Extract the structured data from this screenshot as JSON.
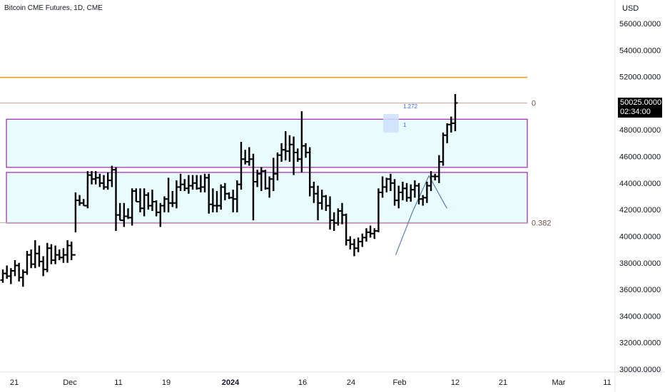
{
  "header": {
    "title": "Bitcoin CME Futures, 1D, CME"
  },
  "price_axis": {
    "currency": "USD",
    "last_price": "50025.0000",
    "countdown": "02:34:00"
  },
  "chart_data": {
    "type": "ohlc",
    "title": "Bitcoin CME Futures, 1D, CME",
    "y_ticks": [
      "56000.0000",
      "54000.0000",
      "52000.0000",
      "50000.0000",
      "48000.0000",
      "46000.0000",
      "44000.0000",
      "42000.0000",
      "40000.0000",
      "38000.0000",
      "36000.0000",
      "34000.0000",
      "32000.0000",
      "30000.0000"
    ],
    "ylim": [
      30000,
      56000
    ],
    "x_ticks": [
      {
        "label": "21",
        "bold": false
      },
      {
        "label": "Dec",
        "bold": false
      },
      {
        "label": "11",
        "bold": false
      },
      {
        "label": "19",
        "bold": false
      },
      {
        "label": "2024",
        "bold": true
      },
      {
        "label": "16",
        "bold": false
      },
      {
        "label": "24",
        "bold": false
      },
      {
        "label": "Feb",
        "bold": false
      },
      {
        "label": "12",
        "bold": false
      },
      {
        "label": "21",
        "bold": false
      },
      {
        "label": "Mar",
        "bold": false
      },
      {
        "label": "11",
        "bold": false
      }
    ],
    "fib_labels": [
      {
        "label": "0",
        "price": 50025
      },
      {
        "label": "0.382",
        "price": 41020
      }
    ],
    "extension_labels": [
      {
        "label": "1.272",
        "price": 49780
      },
      {
        "label": "1",
        "price": 48400
      }
    ],
    "horizontal_lines": [
      {
        "price": 51950,
        "color": "#e6a020",
        "role": "resistance"
      },
      {
        "price": 50025,
        "color": "#c8a89a",
        "role": "fib-0"
      }
    ],
    "zones": [
      {
        "top": 48800,
        "bottom": 45180,
        "color": "#9c27b0",
        "fill": "#e8fbfd"
      },
      {
        "top": 44800,
        "bottom": 41000,
        "color": "#9c27b0",
        "fill": "#e8fbfd"
      }
    ],
    "extension_line": [
      {
        "x": 0.595,
        "price": 38600
      },
      {
        "x": 0.62,
        "price": 41800
      },
      {
        "x": 0.645,
        "price": 44550
      },
      {
        "x": 0.672,
        "price": 42100
      }
    ],
    "bars": [
      [
        36700,
        37500,
        36500,
        37200
      ],
      [
        37200,
        37800,
        36800,
        37000
      ],
      [
        37000,
        37600,
        36400,
        37400
      ],
      [
        37400,
        38200,
        37000,
        37800
      ],
      [
        37800,
        38000,
        36600,
        36900
      ],
      [
        36900,
        37500,
        36200,
        37300
      ],
      [
        37300,
        38900,
        37100,
        38600
      ],
      [
        38600,
        39000,
        37600,
        37900
      ],
      [
        37900,
        39700,
        37600,
        38700
      ],
      [
        38700,
        39300,
        37700,
        38100
      ],
      [
        38100,
        38500,
        37000,
        37500
      ],
      [
        37500,
        39500,
        37300,
        39100
      ],
      [
        39100,
        39400,
        37900,
        38200
      ],
      [
        38200,
        39300,
        37900,
        38600
      ],
      [
        38600,
        39000,
        38200,
        38400
      ],
      [
        38400,
        39100,
        38000,
        38600
      ],
      [
        38600,
        39700,
        38000,
        39300
      ],
      [
        39300,
        39600,
        38200,
        38600
      ],
      [
        38600,
        43300,
        40300,
        42700
      ],
      [
        42700,
        43100,
        42300,
        42500
      ],
      [
        42500,
        42800,
        42300,
        42300
      ],
      [
        42300,
        44900,
        42100,
        44600
      ],
      [
        44600,
        44900,
        43900,
        44300
      ],
      [
        44300,
        44900,
        43900,
        44400
      ],
      [
        44400,
        44700,
        43700,
        44000
      ],
      [
        44000,
        44600,
        43500,
        43700
      ],
      [
        43700,
        44800,
        43500,
        44200
      ],
      [
        44200,
        45300,
        43700,
        45000
      ],
      [
        45000,
        45200,
        40400,
        41600
      ],
      [
        41600,
        42500,
        41200,
        41200
      ],
      [
        41200,
        42500,
        40700,
        41500
      ],
      [
        41500,
        42100,
        41300,
        41400
      ],
      [
        41400,
        43600,
        40800,
        43400
      ],
      [
        43400,
        43600,
        42600,
        42600
      ],
      [
        42600,
        43600,
        41800,
        42100
      ],
      [
        42100,
        43600,
        41500,
        43100
      ],
      [
        43100,
        43300,
        42000,
        42300
      ],
      [
        42300,
        43500,
        41900,
        42600
      ],
      [
        42600,
        42700,
        41500,
        41800
      ],
      [
        41800,
        42500,
        40700,
        42300
      ],
      [
        42300,
        43000,
        41800,
        42800
      ],
      [
        42800,
        44400,
        41800,
        42500
      ],
      [
        42500,
        43400,
        42200,
        42500
      ],
      [
        42500,
        44200,
        42100,
        43700
      ],
      [
        43700,
        44700,
        43400,
        43900
      ],
      [
        43900,
        44300,
        43400,
        43600
      ],
      [
        43600,
        44600,
        43200,
        43800
      ],
      [
        43800,
        44600,
        43500,
        44000
      ],
      [
        44000,
        44600,
        43500,
        43600
      ],
      [
        43600,
        44600,
        43300,
        43700
      ],
      [
        43700,
        44700,
        43300,
        44400
      ],
      [
        44400,
        44700,
        41700,
        42400
      ],
      [
        42400,
        43600,
        41800,
        42300
      ],
      [
        42300,
        43400,
        41800,
        42300
      ],
      [
        42300,
        43900,
        42000,
        43700
      ],
      [
        43700,
        44000,
        42700,
        43200
      ],
      [
        43200,
        43300,
        42800,
        42900
      ],
      [
        42900,
        43500,
        41800,
        42800
      ],
      [
        42800,
        44200,
        41800,
        43900
      ],
      [
        43900,
        47100,
        43500,
        45800
      ],
      [
        45800,
        46500,
        45400,
        45600
      ],
      [
        45600,
        46700,
        45300,
        45800
      ],
      [
        45800,
        46200,
        41200,
        44100
      ],
      [
        44100,
        45000,
        43700,
        44700
      ],
      [
        44700,
        45200,
        43400,
        44900
      ],
      [
        44900,
        45000,
        43500,
        43600
      ],
      [
        43600,
        44500,
        42900,
        44300
      ],
      [
        44300,
        45900,
        43400,
        44700
      ],
      [
        44700,
        46300,
        44200,
        46100
      ],
      [
        46100,
        47000,
        45600,
        46500
      ],
      [
        46500,
        47900,
        45700,
        46400
      ],
      [
        46400,
        47600,
        45600,
        46900
      ],
      [
        46900,
        47500,
        44600,
        46300
      ],
      [
        46300,
        46600,
        45600,
        45800
      ],
      [
        45800,
        49400,
        44800,
        46800
      ],
      [
        46800,
        47000,
        45900,
        46300
      ],
      [
        46300,
        46700,
        43000,
        43700
      ],
      [
        43700,
        44100,
        42500,
        43200
      ],
      [
        43200,
        43800,
        41200,
        42500
      ],
      [
        42500,
        43500,
        42000,
        43000
      ],
      [
        43000,
        43100,
        41900,
        42300
      ],
      [
        42300,
        43000,
        40500,
        41200
      ],
      [
        41200,
        41800,
        40400,
        41000
      ],
      [
        41000,
        42100,
        40800,
        41900
      ],
      [
        41900,
        42500,
        40900,
        41600
      ],
      [
        41600,
        41700,
        39300,
        39700
      ],
      [
        39700,
        40000,
        39000,
        39400
      ],
      [
        39400,
        39800,
        38500,
        39100
      ],
      [
        39100,
        39900,
        38800,
        39600
      ],
      [
        39600,
        40200,
        39200,
        39900
      ],
      [
        39900,
        40600,
        39600,
        40300
      ],
      [
        40300,
        40800,
        39900,
        40200
      ],
      [
        40200,
        40600,
        39800,
        40400
      ],
      [
        40400,
        43600,
        40300,
        43300
      ],
      [
        43300,
        44500,
        42900,
        43700
      ],
      [
        43700,
        44400,
        43300,
        44300
      ],
      [
        44300,
        44700,
        43400,
        44000
      ],
      [
        44000,
        44300,
        42300,
        42700
      ],
      [
        42700,
        43800,
        42100,
        43300
      ],
      [
        43300,
        44100,
        42700,
        43600
      ],
      [
        43600,
        44000,
        42600,
        42900
      ],
      [
        42900,
        43900,
        42600,
        43500
      ],
      [
        43500,
        44200,
        42900,
        43800
      ],
      [
        43800,
        44000,
        42400,
        42800
      ],
      [
        42800,
        43100,
        42300,
        42900
      ],
      [
        42900,
        44100,
        42500,
        43800
      ],
      [
        43800,
        44900,
        43400,
        44500
      ],
      [
        44500,
        44700,
        44200,
        44500
      ],
      [
        44500,
        46100,
        44000,
        45600
      ],
      [
        45600,
        47800,
        45300,
        47600
      ],
      [
        47600,
        48500,
        47000,
        48400
      ],
      [
        48400,
        49000,
        47800,
        48500
      ],
      [
        48500,
        50700,
        47900,
        50025
      ]
    ]
  }
}
